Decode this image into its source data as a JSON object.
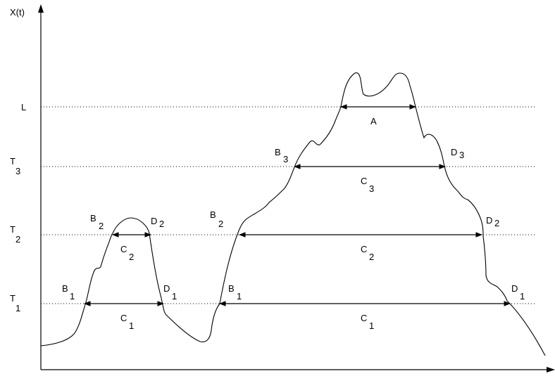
{
  "axis": {
    "y_label": "X(t)"
  },
  "levels": [
    {
      "id": "L",
      "base": "L",
      "sub": ""
    },
    {
      "id": "T3",
      "base": "T",
      "sub": "3"
    },
    {
      "id": "T2",
      "base": "T",
      "sub": "2"
    },
    {
      "id": "T1",
      "base": "T",
      "sub": "1"
    }
  ],
  "spans": [
    {
      "id": "A",
      "label": "A",
      "sub": ""
    },
    {
      "id": "C3",
      "label": "C",
      "sub": "3"
    },
    {
      "id": "C2-left",
      "label": "C",
      "sub": "2"
    },
    {
      "id": "C2-right",
      "label": "C",
      "sub": "2"
    },
    {
      "id": "C1-left",
      "label": "C",
      "sub": "1"
    },
    {
      "id": "C1-right",
      "label": "C",
      "sub": "1"
    }
  ],
  "points": [
    {
      "id": "B1-left",
      "base": "B",
      "sub": "1"
    },
    {
      "id": "D1-left",
      "base": "D",
      "sub": "1"
    },
    {
      "id": "B2-left",
      "base": "B",
      "sub": "2"
    },
    {
      "id": "D2-left",
      "base": "D",
      "sub": "2"
    },
    {
      "id": "B1-right",
      "base": "B",
      "sub": "1"
    },
    {
      "id": "B2-right",
      "base": "B",
      "sub": "2"
    },
    {
      "id": "B3-right",
      "base": "B",
      "sub": "3"
    },
    {
      "id": "D3-right",
      "base": "D",
      "sub": "3"
    },
    {
      "id": "D2-right",
      "base": "D",
      "sub": "2"
    },
    {
      "id": "D1-right",
      "base": "D",
      "sub": "1"
    }
  ]
}
